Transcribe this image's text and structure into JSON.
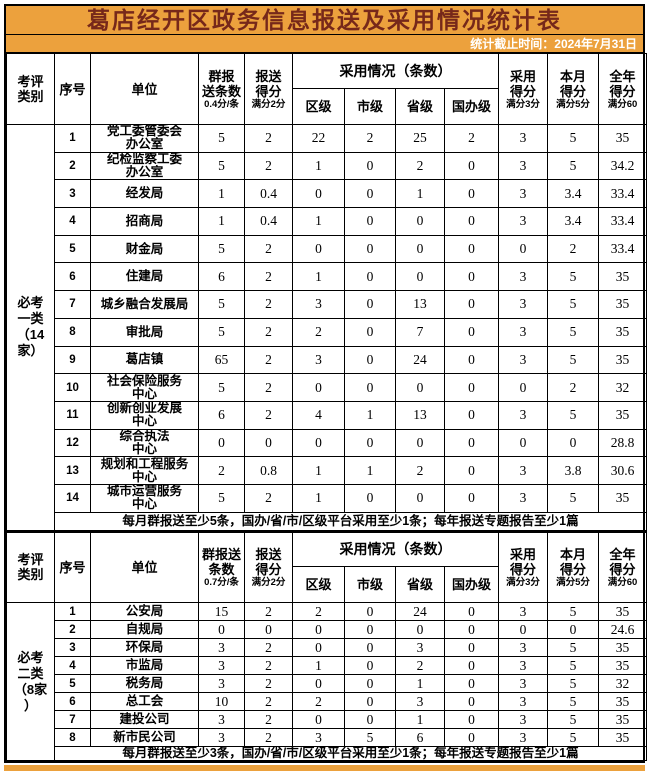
{
  "title": "葛店经开区政务信息报送及采用情况统计表",
  "subtitle": "统计截止时间：2024年7月31日",
  "colors": {
    "accent_orange": "#ECA13D",
    "title_text": "#76281A",
    "subtitle_text": "#FFFFFF",
    "border": "#000000",
    "table_text": "#000000"
  },
  "sections": [
    {
      "category_label": "必考\n一类\n（14\n家）",
      "header": {
        "category": "考评\n类别",
        "index": "序号",
        "unit": "单位",
        "group_submit_top": "群报\n送条数",
        "group_submit_sub": "0.4分/条",
        "submit_score_top": "报送\n得分",
        "submit_score_sub": "满分2分",
        "adoption_group": "采用情况（条数）",
        "adoption_levels": [
          "区级",
          "市级",
          "省级",
          "国办级"
        ],
        "adopt_score_top": "采用\n得分",
        "adopt_score_sub": "满分3分",
        "month_score_top": "本月\n得分",
        "month_score_sub": "满分5分",
        "year_score_top": "全年\n得分",
        "year_score_sub": "满分60"
      },
      "rows": [
        [
          1,
          "党工委管委会\n办公室",
          5,
          2,
          22,
          2,
          25,
          2,
          3,
          5,
          35
        ],
        [
          2,
          "纪检监察工委\n办公室",
          5,
          2,
          1,
          0,
          2,
          0,
          3,
          5,
          34.2
        ],
        [
          3,
          "经发局",
          1,
          0.4,
          0,
          0,
          1,
          0,
          3,
          3.4,
          33.4
        ],
        [
          4,
          "招商局",
          1,
          0.4,
          1,
          0,
          0,
          0,
          3,
          3.4,
          33.4
        ],
        [
          5,
          "财金局",
          5,
          2,
          0,
          0,
          0,
          0,
          0,
          2,
          33.4
        ],
        [
          6,
          "住建局",
          6,
          2,
          1,
          0,
          0,
          0,
          3,
          5,
          35
        ],
        [
          7,
          "城乡融合发展局",
          5,
          2,
          3,
          0,
          13,
          0,
          3,
          5,
          35
        ],
        [
          8,
          "审批局",
          5,
          2,
          2,
          0,
          7,
          0,
          3,
          5,
          35
        ],
        [
          9,
          "葛店镇",
          65,
          2,
          3,
          0,
          24,
          0,
          3,
          5,
          35
        ],
        [
          10,
          "社会保险服务\n中心",
          5,
          2,
          0,
          0,
          0,
          0,
          0,
          2,
          32
        ],
        [
          11,
          "创新创业发展\n中心",
          6,
          2,
          4,
          1,
          13,
          0,
          3,
          5,
          35
        ],
        [
          12,
          "综合执法\n中心",
          0,
          0,
          0,
          0,
          0,
          0,
          0,
          0,
          28.8
        ],
        [
          13,
          "规划和工程服务\n中心",
          2,
          0.8,
          1,
          1,
          2,
          0,
          3,
          3.8,
          30.6
        ],
        [
          14,
          "城市运营服务\n中心",
          5,
          2,
          1,
          0,
          0,
          0,
          3,
          5,
          35
        ]
      ],
      "note": "每月群报送至少5条，国办/省/市/区级平台采用至少1条；每年报送专题报告至少1篇"
    },
    {
      "category_label": "必考\n二类\n（8家\n）",
      "header": {
        "category": "考评\n类别",
        "index": "序号",
        "unit": "单位",
        "group_submit_top": "群报送\n条数",
        "group_submit_sub": "0.7分/条",
        "submit_score_top": "报送\n得分",
        "submit_score_sub": "满分2分",
        "adoption_group": "采用情况（条数）",
        "adoption_levels": [
          "区级",
          "市级",
          "省级",
          "国办级"
        ],
        "adopt_score_top": "采用\n得分",
        "adopt_score_sub": "满分3分",
        "month_score_top": "本月\n得分",
        "month_score_sub": "满分5分",
        "year_score_top": "全年\n得分",
        "year_score_sub": "满分60"
      },
      "rows": [
        [
          1,
          "公安局",
          15,
          2,
          2,
          0,
          24,
          0,
          3,
          5,
          35
        ],
        [
          2,
          "自规局",
          0,
          0,
          0,
          0,
          0,
          0,
          0,
          0,
          24.6
        ],
        [
          3,
          "环保局",
          3,
          2,
          0,
          0,
          3,
          0,
          3,
          5,
          35
        ],
        [
          4,
          "市监局",
          3,
          2,
          1,
          0,
          2,
          0,
          3,
          5,
          35
        ],
        [
          5,
          "税务局",
          3,
          2,
          0,
          0,
          1,
          0,
          3,
          5,
          32
        ],
        [
          6,
          "总工会",
          10,
          2,
          2,
          0,
          3,
          0,
          3,
          5,
          35
        ],
        [
          7,
          "建投公司",
          3,
          2,
          0,
          0,
          1,
          0,
          3,
          5,
          35
        ],
        [
          8,
          "新市民公司",
          3,
          2,
          3,
          5,
          6,
          0,
          3,
          5,
          35
        ]
      ],
      "note": "每月群报送至少3条，国办/省/市/区级平台采用至少1条；每年报送专题报告至少1篇"
    }
  ]
}
